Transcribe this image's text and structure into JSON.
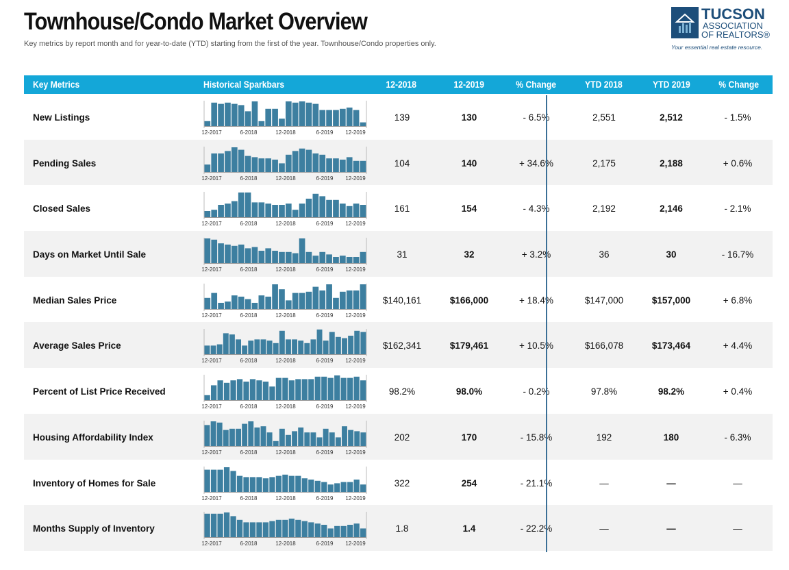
{
  "header": {
    "title": "Townhouse/Condo Market Overview",
    "subtitle": "Key metrics by report month and for year-to-date (YTD) starting from the first of the year. Townhouse/Condo properties only."
  },
  "logo": {
    "line1": "TUCSON",
    "line2": "ASSOCIATION",
    "line3": "OF REALTORS®",
    "tagline": "Your essential real estate resource."
  },
  "columns": {
    "metrics": "Key Metrics",
    "sparkbars": "Historical Sparkbars",
    "m2018": "12-2018",
    "m2019": "12-2019",
    "pct": "% Change",
    "ytd2018": "YTD 2018",
    "ytd2019": "YTD 2019",
    "ytdpct": "% Change"
  },
  "spark_axis": [
    "12-2017",
    "6-2018",
    "12-2018",
    "6-2019",
    "12-2019"
  ],
  "colors": {
    "header": "#14a7d8",
    "bar": "#3d7fa0",
    "alt_row": "#f2f2f2"
  },
  "rows": [
    {
      "metric": "New Listings",
      "m2018": "139",
      "m2019": "130",
      "pct": "- 6.5%",
      "ytd2018": "2,551",
      "ytd2019": "2,512",
      "ytdpct": "- 1.5%",
      "bars": [
        0.2,
        0.95,
        0.9,
        0.95,
        0.9,
        0.85,
        0.6,
        1.0,
        0.2,
        0.7,
        0.7,
        0.3,
        1.0,
        0.95,
        1.0,
        0.95,
        0.9,
        0.65,
        0.65,
        0.65,
        0.7,
        0.75,
        0.65,
        0.15
      ]
    },
    {
      "metric": "Pending Sales",
      "m2018": "104",
      "m2019": "140",
      "pct": "+ 34.6%",
      "ytd2018": "2,175",
      "ytd2019": "2,188",
      "ytdpct": "+ 0.6%",
      "bars": [
        0.3,
        0.75,
        0.75,
        0.85,
        1.0,
        0.9,
        0.65,
        0.6,
        0.55,
        0.55,
        0.5,
        0.35,
        0.7,
        0.85,
        0.95,
        0.9,
        0.75,
        0.7,
        0.55,
        0.55,
        0.5,
        0.6,
        0.45,
        0.45
      ]
    },
    {
      "metric": "Closed Sales",
      "m2018": "161",
      "m2019": "154",
      "pct": "- 4.3%",
      "ytd2018": "2,192",
      "ytd2019": "2,146",
      "ytdpct": "- 2.1%",
      "bars": [
        0.25,
        0.3,
        0.5,
        0.55,
        0.65,
        1.0,
        1.0,
        0.6,
        0.6,
        0.55,
        0.5,
        0.5,
        0.55,
        0.3,
        0.55,
        0.75,
        0.95,
        0.85,
        0.7,
        0.7,
        0.55,
        0.45,
        0.55,
        0.5
      ]
    },
    {
      "metric": "Days on Market Until Sale",
      "m2018": "31",
      "m2019": "32",
      "pct": "+ 3.2%",
      "ytd2018": "36",
      "ytd2019": "30",
      "ytdpct": "- 16.7%",
      "bars": [
        1.0,
        0.95,
        0.8,
        0.75,
        0.7,
        0.75,
        0.6,
        0.65,
        0.5,
        0.6,
        0.5,
        0.45,
        0.45,
        0.4,
        1.0,
        0.45,
        0.3,
        0.45,
        0.35,
        0.25,
        0.3,
        0.25,
        0.25,
        0.45
      ]
    },
    {
      "metric": "Median Sales Price",
      "m2018": "$140,161",
      "m2019": "$166,000",
      "pct": "+ 18.4%",
      "ytd2018": "$147,000",
      "ytd2019": "$157,000",
      "ytdpct": "+ 6.8%",
      "bars": [
        0.45,
        0.65,
        0.25,
        0.3,
        0.55,
        0.5,
        0.4,
        0.25,
        0.55,
        0.5,
        1.0,
        0.8,
        0.35,
        0.65,
        0.65,
        0.7,
        0.9,
        0.75,
        1.0,
        0.45,
        0.7,
        0.75,
        0.75,
        1.0
      ]
    },
    {
      "metric": "Average Sales Price",
      "m2018": "$162,341",
      "m2019": "$179,461",
      "pct": "+ 10.5%",
      "ytd2018": "$166,078",
      "ytd2019": "$173,464",
      "ytdpct": "+ 4.4%",
      "bars": [
        0.35,
        0.35,
        0.4,
        0.85,
        0.8,
        0.6,
        0.35,
        0.55,
        0.6,
        0.6,
        0.55,
        0.45,
        0.95,
        0.6,
        0.6,
        0.55,
        0.45,
        0.6,
        1.0,
        0.55,
        0.9,
        0.7,
        0.65,
        0.75,
        0.95,
        0.9
      ]
    },
    {
      "metric": "Percent of List Price Received",
      "m2018": "98.2%",
      "m2019": "98.0%",
      "pct": "- 0.2%",
      "ytd2018": "97.8%",
      "ytd2019": "98.2%",
      "ytdpct": "+ 0.4%",
      "bars": [
        0.2,
        0.6,
        0.8,
        0.7,
        0.8,
        0.85,
        0.75,
        0.85,
        0.8,
        0.75,
        0.55,
        0.9,
        0.9,
        0.8,
        0.85,
        0.85,
        0.85,
        0.95,
        0.95,
        0.9,
        1.0,
        0.9,
        0.9,
        0.95,
        0.8
      ]
    },
    {
      "metric": "Housing Affordability Index",
      "m2018": "202",
      "m2019": "170",
      "pct": "- 15.8%",
      "ytd2018": "192",
      "ytd2019": "180",
      "ytdpct": "- 6.3%",
      "bars": [
        0.85,
        1.0,
        0.95,
        0.65,
        0.7,
        0.7,
        0.9,
        1.0,
        0.75,
        0.8,
        0.55,
        0.2,
        0.7,
        0.45,
        0.6,
        0.75,
        0.55,
        0.55,
        0.35,
        0.7,
        0.55,
        0.35,
        0.8,
        0.65,
        0.6,
        0.55
      ]
    },
    {
      "metric": "Inventory of Homes for Sale",
      "m2018": "322",
      "m2019": "254",
      "pct": "- 21.1%",
      "ytd2018": "—",
      "ytd2019": "—",
      "ytdpct": "—",
      "bars": [
        0.9,
        0.9,
        0.9,
        1.0,
        0.85,
        0.65,
        0.6,
        0.6,
        0.6,
        0.55,
        0.6,
        0.65,
        0.7,
        0.65,
        0.65,
        0.55,
        0.5,
        0.45,
        0.4,
        0.3,
        0.35,
        0.4,
        0.4,
        0.5,
        0.3
      ]
    },
    {
      "metric": "Months Supply of Inventory",
      "m2018": "1.8",
      "m2019": "1.4",
      "pct": "- 22.2%",
      "ytd2018": "—",
      "ytd2019": "—",
      "ytdpct": "—",
      "bars": [
        0.95,
        0.95,
        0.95,
        1.0,
        0.85,
        0.7,
        0.6,
        0.6,
        0.6,
        0.6,
        0.65,
        0.7,
        0.7,
        0.75,
        0.7,
        0.65,
        0.6,
        0.55,
        0.5,
        0.35,
        0.45,
        0.45,
        0.5,
        0.55,
        0.35
      ]
    }
  ]
}
